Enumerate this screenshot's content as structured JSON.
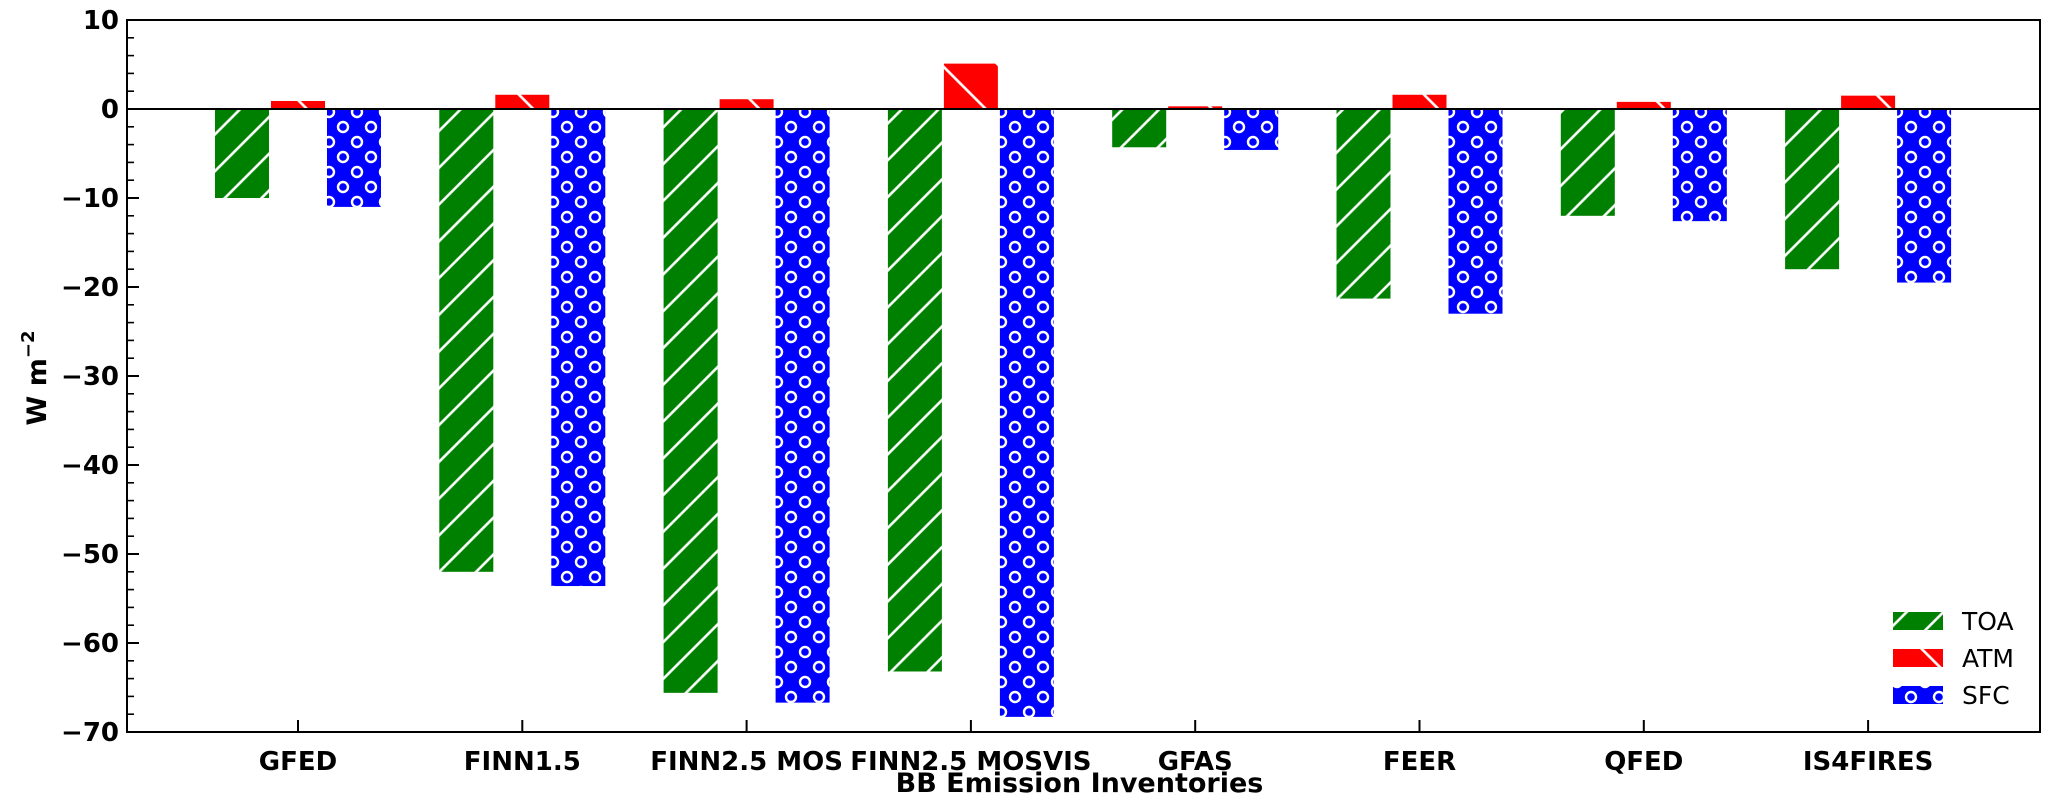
{
  "chart_data": {
    "type": "bar",
    "title": "",
    "xlabel": "BB Emission Inventories",
    "ylabel": "W m",
    "ylabel_superscript": "−2",
    "ylim": [
      -70,
      10
    ],
    "yticks": [
      10,
      0,
      -10,
      -20,
      -30,
      -40,
      -50,
      -60,
      -70
    ],
    "ytick_labels": [
      "10",
      "0",
      "−10",
      "−20",
      "−30",
      "−40",
      "−50",
      "−60",
      "−70"
    ],
    "grid": false,
    "legend_position": "bottom-right",
    "categories": [
      "GFED",
      "FINN1.5",
      "FINN2.5 MOS",
      "FINN2.5 MOSVIS",
      "GFAS",
      "FEER",
      "QFED",
      "IS4FIRES"
    ],
    "series": [
      {
        "name": "TOA",
        "color": "#008000",
        "hatch": "diagonal-lines",
        "values": [
          -10.0,
          -52.0,
          -65.6,
          -63.2,
          -4.3,
          -21.3,
          -12.0,
          -18.0
        ]
      },
      {
        "name": "ATM",
        "color": "#ff0000",
        "hatch": "back-diagonal",
        "values": [
          0.9,
          1.6,
          1.1,
          5.1,
          0.3,
          1.6,
          0.8,
          1.5
        ]
      },
      {
        "name": "SFC",
        "color": "#0000ff",
        "hatch": "circles",
        "values": [
          -11.0,
          -53.6,
          -66.7,
          -68.3,
          -4.6,
          -23.0,
          -12.6,
          -19.5
        ]
      }
    ]
  }
}
